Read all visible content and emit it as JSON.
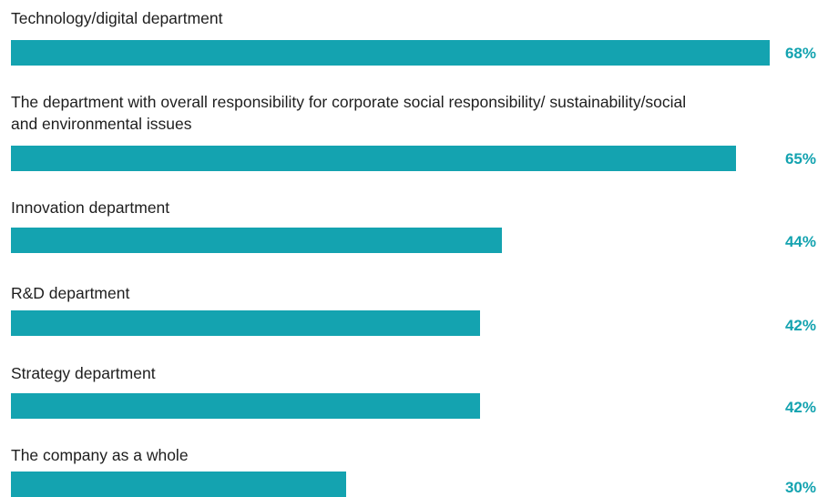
{
  "colors": {
    "bar": "#14a3b0",
    "value_text": "#14a3b0",
    "label_text": "#1e1e1e"
  },
  "chart_data": {
    "type": "bar",
    "orientation": "horizontal",
    "categories": [
      "Technology/digital department",
      "The department with overall responsibility for corporate social responsibility/ sustainability/social and environmental issues",
      "Innovation department",
      "R&D department",
      "Strategy department",
      "The company as a whole"
    ],
    "values": [
      68,
      65,
      44,
      42,
      42,
      30
    ],
    "value_labels": [
      "68%",
      "65%",
      "44%",
      "42%",
      "42%",
      "30%"
    ],
    "title": "",
    "xlabel": "",
    "ylabel": "",
    "xlim": [
      0,
      68
    ],
    "grid": false,
    "legend": "none"
  }
}
